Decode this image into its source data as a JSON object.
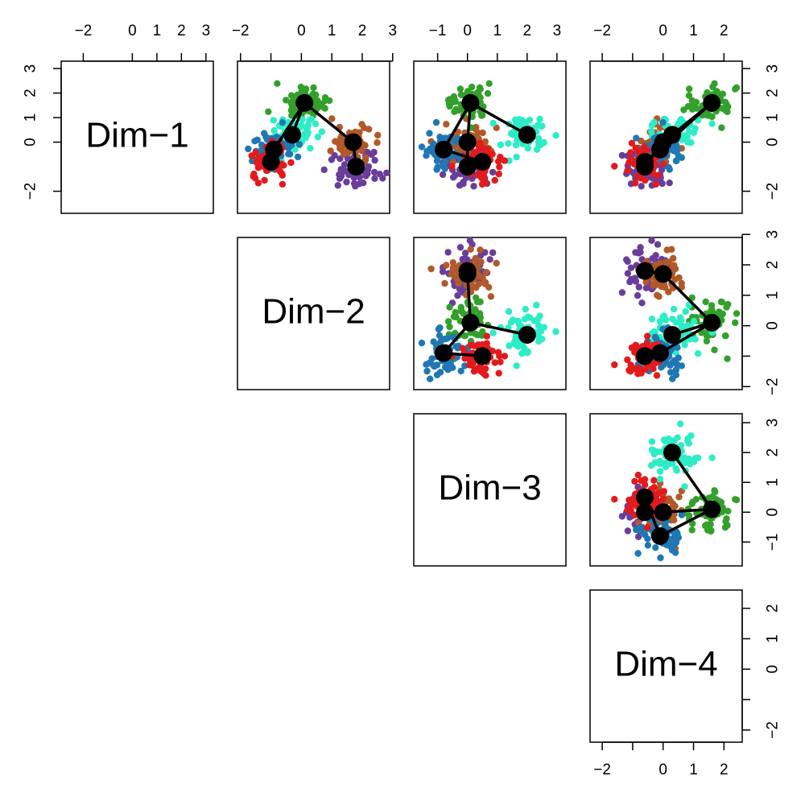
{
  "chart_data": {
    "type": "scatter-matrix",
    "panel_labels": [
      "Dim−1",
      "Dim−2",
      "Dim−3",
      "Dim−4"
    ],
    "axes": {
      "dim1": {
        "range": [
          -2.9,
          3.3
        ],
        "ticks": [
          -2,
          0,
          1,
          2,
          3
        ],
        "tick_labels": [
          "−2",
          "0",
          "1",
          "2",
          "3"
        ]
      },
      "dim2": {
        "range": [
          -2.1,
          2.9
        ],
        "ticks": [
          -2,
          -1,
          0,
          1,
          2,
          3
        ],
        "tick_labels": [
          "−2",
          "",
          "0",
          "1",
          "2",
          "3"
        ]
      },
      "dim3": {
        "range": [
          -1.8,
          3.3
        ],
        "ticks": [
          -1,
          0,
          1,
          2,
          3
        ],
        "tick_labels": [
          "−1",
          "0",
          "1",
          "2",
          "3"
        ]
      },
      "dim4": {
        "range": [
          -2.4,
          2.6
        ],
        "ticks": [
          -2,
          -1,
          0,
          1,
          2
        ],
        "tick_labels": [
          "−2",
          "",
          "0",
          "1",
          "2"
        ]
      }
    },
    "grid": false,
    "legend": "none",
    "cluster_colors": [
      "#6a3d9a",
      "#b15928",
      "#33a02c",
      "#2cedc5",
      "#1f78b4",
      "#e31a1c"
    ],
    "centroids": [
      {
        "name": "purple",
        "dim1": -1.0,
        "dim2": 1.8,
        "dim3": 0.0,
        "dim4": -0.6
      },
      {
        "name": "brown",
        "dim1": 0.0,
        "dim2": 1.7,
        "dim3": 0.0,
        "dim4": 0.0
      },
      {
        "name": "green",
        "dim1": 1.6,
        "dim2": 0.1,
        "dim3": 0.1,
        "dim4": 1.6
      },
      {
        "name": "cyan",
        "dim1": 0.3,
        "dim2": -0.3,
        "dim3": 2.0,
        "dim4": 0.3
      },
      {
        "name": "blue",
        "dim1": -0.3,
        "dim2": -0.9,
        "dim3": -0.8,
        "dim4": -0.1
      },
      {
        "name": "red",
        "dim1": -0.8,
        "dim2": -1.0,
        "dim3": 0.5,
        "dim4": -0.6
      }
    ],
    "tree_edges": [
      [
        0,
        1
      ],
      [
        1,
        2
      ],
      [
        2,
        3
      ],
      [
        2,
        4
      ],
      [
        4,
        5
      ]
    ],
    "cluster_spread": [
      0.4,
      0.35,
      0.35,
      0.4,
      0.35,
      0.35
    ],
    "points_per_cluster": 60
  }
}
